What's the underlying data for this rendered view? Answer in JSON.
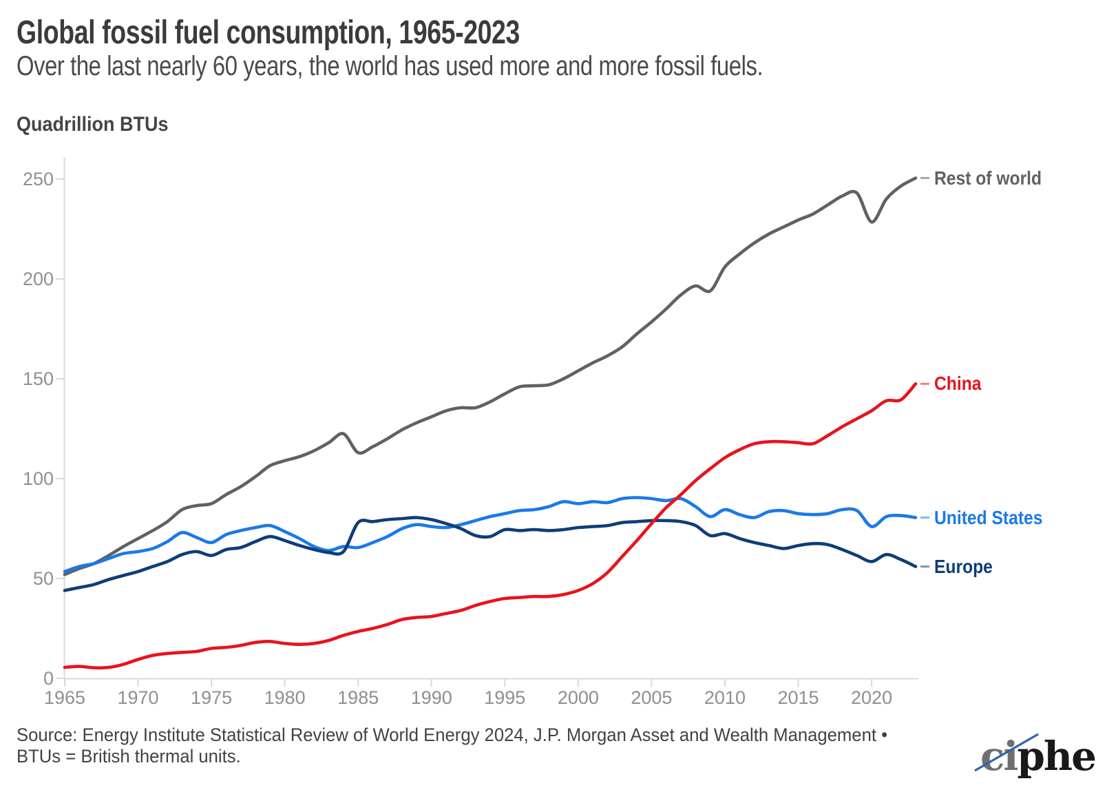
{
  "header": {
    "title": "Global fossil fuel consumption, 1965-2023",
    "subtitle": "Over the last nearly 60 years, the world has used more and more fossil fuels.",
    "units_label": "Quadrillion BTUs"
  },
  "footer": {
    "source_line1": "Source: Energy Institute Statistical Review of World Energy 2024, J.P. Morgan Asset and Wealth Management •",
    "source_line2": "BTUs = British thermal units.",
    "logo_text_gray": "ci",
    "logo_text_black": "pher"
  },
  "colors": {
    "axis": "#d9d9d9",
    "tick_label": "#8f8f8f",
    "title_text": "#3b3b3b",
    "logo_slash": "#2e63af",
    "logo_gray": "#6f6f6f",
    "logo_black": "#191919"
  },
  "chart_data": {
    "type": "line",
    "title": "Global fossil fuel consumption, 1965-2023",
    "xlabel": "",
    "ylabel": "Quadrillion BTUs",
    "xlim": [
      1965,
      2023
    ],
    "ylim": [
      0,
      250
    ],
    "grid": false,
    "legend_position": "right-of-line-ends",
    "x_ticks": [
      1965,
      1970,
      1975,
      1980,
      1985,
      1990,
      1995,
      2000,
      2005,
      2010,
      2015,
      2020
    ],
    "y_ticks": [
      0,
      50,
      100,
      150,
      200,
      250
    ],
    "years": [
      1965,
      1966,
      1967,
      1968,
      1969,
      1970,
      1971,
      1972,
      1973,
      1974,
      1975,
      1976,
      1977,
      1978,
      1979,
      1980,
      1981,
      1982,
      1983,
      1984,
      1985,
      1986,
      1987,
      1988,
      1989,
      1990,
      1991,
      1992,
      1993,
      1994,
      1995,
      1996,
      1997,
      1998,
      1999,
      2000,
      2001,
      2002,
      2003,
      2004,
      2005,
      2006,
      2007,
      2008,
      2009,
      2010,
      2011,
      2012,
      2013,
      2014,
      2015,
      2016,
      2017,
      2018,
      2019,
      2020,
      2021,
      2022,
      2023
    ],
    "series": [
      {
        "name": "Rest of world",
        "color": "#616161",
        "values": [
          52,
          55,
          57.5,
          61.5,
          66,
          70,
          74,
          78.5,
          84.5,
          86.5,
          87.5,
          92,
          96,
          101,
          106.5,
          109,
          111,
          114,
          118,
          122.5,
          113,
          116,
          120,
          124.5,
          128,
          131,
          134,
          135.5,
          135.5,
          138.5,
          142.5,
          146,
          146.5,
          147,
          150,
          154,
          158,
          161.5,
          166,
          172.5,
          178.5,
          185,
          192,
          196.5,
          194,
          206,
          212.5,
          218,
          222.5,
          226,
          229.5,
          232.5,
          237,
          241.5,
          243,
          228.5,
          240,
          246.5,
          250.5
        ]
      },
      {
        "name": "United States",
        "color": "#1b79e8",
        "values": [
          53.5,
          56,
          57.5,
          60,
          62.5,
          63.5,
          65,
          68.5,
          73,
          70.5,
          68,
          72,
          74,
          75.5,
          76.5,
          73.5,
          70,
          66,
          64,
          66,
          65.5,
          68,
          71,
          75,
          77,
          76,
          75.5,
          77,
          79,
          81,
          82.5,
          84,
          84.5,
          86,
          88.5,
          87.5,
          88.5,
          88,
          90,
          90.5,
          90,
          89,
          90,
          86,
          81,
          84.5,
          82,
          80.5,
          83.5,
          84,
          82.5,
          82,
          82.5,
          84.5,
          84,
          76,
          81,
          81.5,
          80.5
        ]
      },
      {
        "name": "Europe",
        "color": "#0e3d78",
        "values": [
          44,
          45.5,
          47,
          49.5,
          51.5,
          53.5,
          56,
          58.5,
          62,
          63.5,
          61.5,
          64.5,
          65.5,
          68.5,
          71,
          69,
          66.5,
          64.5,
          63,
          63.5,
          78,
          78.5,
          79.5,
          80,
          80.5,
          79.5,
          77.5,
          75,
          71.5,
          71,
          74.5,
          74,
          74.5,
          74,
          74.5,
          75.5,
          76,
          76.5,
          78,
          78.5,
          79,
          79,
          78.5,
          76.5,
          71.5,
          72.5,
          70,
          68,
          66.5,
          65,
          66.5,
          67.5,
          67,
          64.5,
          61.5,
          58.5,
          62,
          59.5,
          56
        ]
      },
      {
        "name": "China",
        "color": "#e8131c",
        "values": [
          5.5,
          6,
          5.3,
          5.5,
          7,
          9.5,
          11.5,
          12.5,
          13,
          13.5,
          15,
          15.5,
          16.5,
          18,
          18.5,
          17.5,
          17,
          17.5,
          19,
          21.5,
          23.5,
          25,
          27,
          29.5,
          30.5,
          31,
          32.5,
          34,
          36.5,
          38.5,
          40,
          40.5,
          41,
          41,
          42,
          44,
          47.5,
          53,
          61,
          69,
          77.5,
          85.5,
          92,
          99,
          105,
          110.5,
          114.5,
          117.5,
          118.5,
          118.5,
          118,
          117.5,
          121.5,
          126,
          130,
          134,
          139,
          139.5,
          147.5
        ]
      }
    ]
  }
}
